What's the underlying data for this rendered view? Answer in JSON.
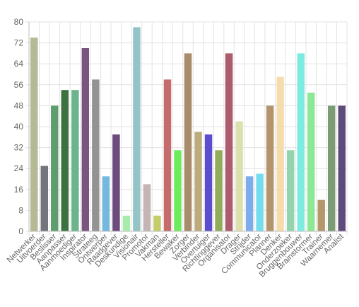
{
  "chart_data": {
    "type": "bar",
    "title": "",
    "xlabel": "",
    "ylabel": "",
    "ylim": [
      0,
      80
    ],
    "yticks": [
      0,
      8,
      16,
      24,
      32,
      40,
      48,
      56,
      64,
      72,
      80
    ],
    "grid": true,
    "legend": "none",
    "categories": [
      "Netwerker",
      "Uitvoerder",
      "Beslisser",
      "Aanpasser",
      "Aanmoediger",
      "Inspirator",
      "Strateeg",
      "Ontwerper",
      "Raadgever",
      "Deskundige",
      "Visionair",
      "Promotor",
      "Vakman",
      "Hersteller",
      "Bewaker",
      "Zorger",
      "Verbinder",
      "Overtuiger",
      "Richtinggever",
      "Organisator",
      "Drager",
      "Strijder",
      "Communicator",
      "Planner",
      "Denker",
      "Onderzoeker",
      "Bruggenbouwer",
      "Brainstormer",
      "Trainer",
      "Waarnemer",
      "Analist"
    ],
    "values": [
      74,
      25,
      48,
      54,
      54,
      70,
      58,
      21,
      37,
      6,
      78,
      18,
      6,
      58,
      31,
      68,
      38,
      37,
      31,
      68,
      42,
      21,
      22,
      48,
      59,
      31,
      68,
      53,
      12,
      48,
      48
    ],
    "colors": [
      "#b5b995",
      "#74747c",
      "#5c9e6c",
      "#3d7240",
      "#6cb48c",
      "#7a5580",
      "#939393",
      "#74b8e0",
      "#6c4c7c",
      "#a8ecac",
      "#94c4c8",
      "#c4b4b4",
      "#c4cc6c",
      "#c46c6c",
      "#6cec5c",
      "#a88c6c",
      "#bcac7c",
      "#5c4cd0",
      "#93ac5c",
      "#ac5c6c",
      "#dce0ac",
      "#7cacec",
      "#74dcec",
      "#b4946c",
      "#f4dcac",
      "#94d4ac",
      "#7cece0",
      "#8ce894",
      "#b4986c",
      "#7c9c74",
      "#5c4c7c"
    ]
  }
}
